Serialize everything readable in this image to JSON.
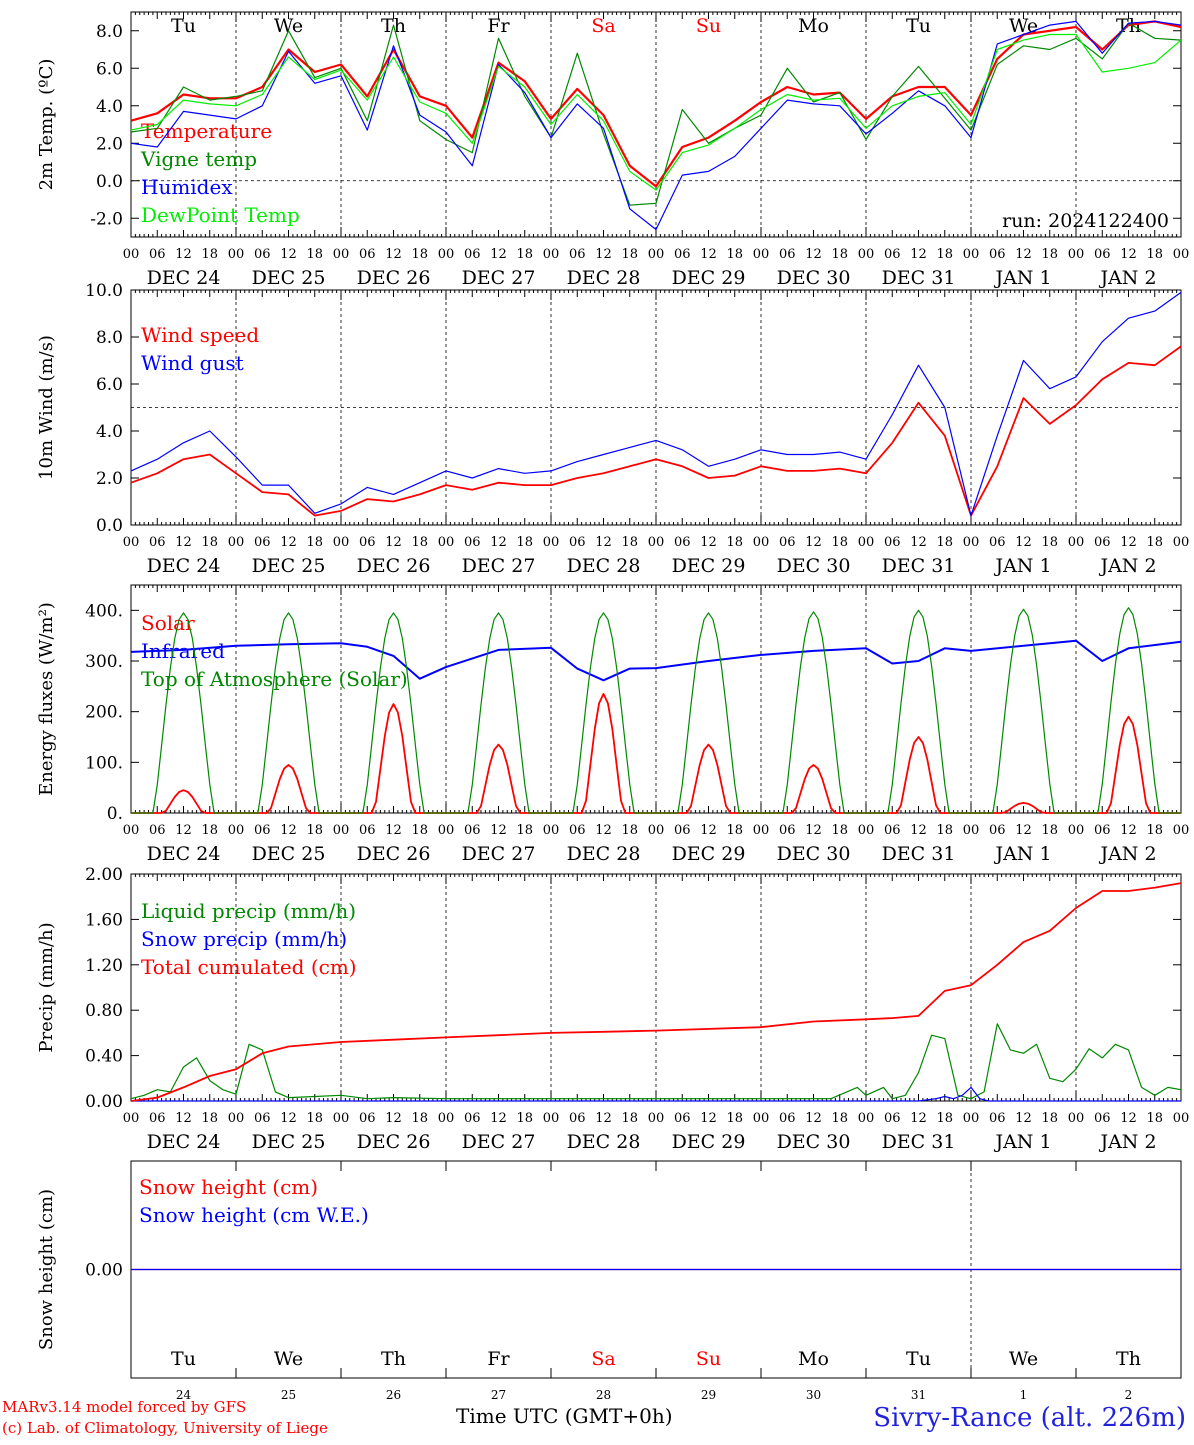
{
  "run_label": "run: 2024122400",
  "footer": {
    "model": "MARv3.14 model forced by GFS",
    "credit": "(c) Lab. of Climatology, University of Liege",
    "time_label": "Time UTC (GMT+0h)",
    "station": "Sivry-Rance (alt. 226m)"
  },
  "x_axis": {
    "hour_labels": [
      "00",
      "06",
      "12",
      "18"
    ],
    "date_labels": [
      "DEC 24",
      "DEC 25",
      "DEC 26",
      "DEC 27",
      "DEC 28",
      "DEC 29",
      "DEC 30",
      "DEC 31",
      "JAN  1",
      "JAN  2"
    ],
    "weekday_labels": [
      "Tu",
      "We",
      "Th",
      "Fr",
      "Sa",
      "Su",
      "Mo",
      "Tu",
      "We",
      "Th"
    ],
    "weekday_colors": [
      "#000000",
      "#000000",
      "#000000",
      "#000000",
      "#ff0000",
      "#ff0000",
      "#000000",
      "#000000",
      "#000000",
      "#000000"
    ],
    "day_numbers": [
      "24",
      "25",
      "26",
      "27",
      "28",
      "29",
      "30",
      "31",
      "1",
      "2"
    ]
  },
  "chart_data": [
    {
      "type": "line",
      "ylabel": "2m Temp. (ºC)",
      "ylim": [
        -3.0,
        9.0
      ],
      "yticks": [
        "-2.0",
        "0.0",
        "2.0",
        "4.0",
        "6.0",
        "8.0"
      ],
      "ytick_values": [
        -2,
        0,
        2,
        4,
        6,
        8
      ],
      "x_unit": "hours since DEC 24 00 UTC",
      "x": [
        0,
        6,
        12,
        18,
        24,
        30,
        36,
        42,
        48,
        54,
        60,
        66,
        72,
        78,
        84,
        90,
        96,
        102,
        108,
        114,
        120,
        126,
        132,
        138,
        144,
        150,
        156,
        162,
        168,
        174,
        180,
        186,
        192,
        198,
        204,
        210,
        216,
        222,
        228,
        234,
        240
      ],
      "series": [
        {
          "name": "Temperature",
          "color": "#ff0000",
          "width": 2.2,
          "values": [
            3.2,
            3.6,
            4.6,
            4.4,
            4.4,
            5.0,
            7.0,
            5.8,
            6.2,
            4.5,
            7.0,
            4.5,
            4.0,
            2.3,
            6.3,
            5.3,
            3.3,
            4.9,
            3.5,
            0.8,
            -0.3,
            1.8,
            2.3,
            3.2,
            4.2,
            5.0,
            4.6,
            4.7,
            3.3,
            4.5,
            5.0,
            5.0,
            3.5,
            6.5,
            7.8,
            8.0,
            8.2,
            7.0,
            8.3,
            8.5,
            8.2
          ]
        },
        {
          "name": "Vigne temp",
          "color": "#008800",
          "width": 1.2,
          "values": [
            2.6,
            2.8,
            5.0,
            4.3,
            4.5,
            4.8,
            8.0,
            5.5,
            6.0,
            3.2,
            8.3,
            3.2,
            2.2,
            1.5,
            7.6,
            4.5,
            2.3,
            6.8,
            2.5,
            -1.3,
            -1.2,
            3.8,
            2.0,
            2.8,
            3.5,
            6.0,
            4.2,
            4.7,
            2.2,
            4.5,
            6.1,
            4.4,
            2.7,
            6.2,
            7.2,
            7.0,
            7.6,
            6.5,
            8.4,
            7.6,
            7.5
          ]
        },
        {
          "name": "Humidex",
          "color": "#0000ff",
          "width": 1.2,
          "values": [
            2.0,
            1.8,
            3.7,
            3.5,
            3.3,
            4.0,
            6.9,
            5.2,
            5.6,
            2.7,
            7.2,
            3.5,
            2.6,
            0.8,
            6.2,
            4.7,
            2.3,
            4.1,
            2.8,
            -1.5,
            -2.6,
            0.3,
            0.5,
            1.3,
            2.8,
            4.3,
            4.1,
            4.0,
            2.5,
            3.6,
            4.8,
            4.0,
            2.3,
            7.3,
            7.8,
            8.3,
            8.5,
            6.8,
            8.4,
            8.5,
            8.3
          ]
        },
        {
          "name": "DewPoint Temp",
          "color": "#00ee00",
          "width": 1.2,
          "values": [
            2.7,
            3.0,
            4.3,
            4.1,
            4.0,
            4.6,
            6.6,
            5.4,
            5.9,
            4.3,
            6.6,
            4.2,
            3.6,
            2.0,
            6.1,
            5.0,
            3.0,
            4.6,
            3.2,
            0.5,
            -0.5,
            1.5,
            1.9,
            2.8,
            3.8,
            4.6,
            4.3,
            4.4,
            2.8,
            4.0,
            4.5,
            4.7,
            3.0,
            7.0,
            7.5,
            7.8,
            7.8,
            5.8,
            6.0,
            6.3,
            7.5
          ]
        }
      ]
    },
    {
      "type": "line",
      "ylabel": "10m Wind (m/s)",
      "ylim": [
        0.0,
        10.0
      ],
      "yticks": [
        "0.0",
        "2.0",
        "4.0",
        "6.0",
        "8.0",
        "10.0"
      ],
      "ytick_values": [
        0,
        2,
        4,
        6,
        8,
        10
      ],
      "dashed_reference": 5.0,
      "x_unit": "hours since DEC 24 00 UTC",
      "x": [
        0,
        6,
        12,
        18,
        24,
        30,
        36,
        42,
        48,
        54,
        60,
        66,
        72,
        78,
        84,
        90,
        96,
        102,
        108,
        114,
        120,
        126,
        132,
        138,
        144,
        150,
        156,
        162,
        168,
        174,
        180,
        186,
        192,
        198,
        204,
        210,
        216,
        222,
        228,
        234,
        240
      ],
      "series": [
        {
          "name": "Wind speed",
          "color": "#ff0000",
          "width": 1.8,
          "values": [
            1.8,
            2.2,
            2.8,
            3.0,
            2.2,
            1.4,
            1.3,
            0.4,
            0.6,
            1.1,
            1.0,
            1.3,
            1.7,
            1.5,
            1.8,
            1.7,
            1.7,
            2.0,
            2.2,
            2.5,
            2.8,
            2.5,
            2.0,
            2.1,
            2.5,
            2.3,
            2.3,
            2.4,
            2.2,
            3.5,
            5.2,
            3.8,
            0.4,
            2.5,
            5.4,
            4.3,
            5.1,
            6.2,
            6.9,
            6.8,
            7.6
          ]
        },
        {
          "name": "Wind gust",
          "color": "#0000ff",
          "width": 1.2,
          "values": [
            2.3,
            2.8,
            3.5,
            4.0,
            2.9,
            1.7,
            1.7,
            0.5,
            0.9,
            1.6,
            1.3,
            1.8,
            2.3,
            2.0,
            2.4,
            2.2,
            2.3,
            2.7,
            3.0,
            3.3,
            3.6,
            3.2,
            2.5,
            2.8,
            3.2,
            3.0,
            3.0,
            3.1,
            2.8,
            4.7,
            6.8,
            5.0,
            0.4,
            3.8,
            7.0,
            5.8,
            6.3,
            7.8,
            8.8,
            9.1,
            9.9
          ]
        }
      ]
    },
    {
      "type": "line",
      "ylabel": "Energy fluxes (W/m²)",
      "ylim": [
        0,
        450
      ],
      "yticks": [
        "0.",
        "100.",
        "200.",
        "300.",
        "400."
      ],
      "ytick_values": [
        0,
        100,
        200,
        300,
        400
      ],
      "peak_hours": [
        12,
        36,
        60,
        84,
        108,
        132,
        156,
        180,
        204,
        228
      ],
      "series": [
        {
          "name": "Solar",
          "color": "#ff0000",
          "width": 1.8,
          "daily_peaks": [
            45,
            95,
            215,
            135,
            235,
            135,
            95,
            150,
            20,
            190
          ]
        },
        {
          "name": "Infrared",
          "color": "#0000ff",
          "width": 2.0,
          "x": [
            0,
            12,
            24,
            36,
            48,
            54,
            60,
            66,
            72,
            84,
            96,
            102,
            108,
            114,
            120,
            132,
            144,
            156,
            168,
            174,
            180,
            186,
            192,
            204,
            216,
            222,
            228,
            240
          ],
          "values": [
            318,
            322,
            330,
            333,
            335,
            328,
            310,
            265,
            288,
            322,
            326,
            285,
            262,
            285,
            286,
            300,
            312,
            320,
            325,
            295,
            300,
            325,
            320,
            330,
            340,
            300,
            325,
            338
          ]
        },
        {
          "name": "Top of Atmosphere (Solar)",
          "color": "#008800",
          "width": 1.2,
          "daily_peaks": [
            395,
            395,
            395,
            395,
            395,
            395,
            397,
            400,
            402,
            405
          ]
        }
      ]
    },
    {
      "type": "line",
      "ylabel": "Precip (mm/h)",
      "ylim": [
        0.0,
        2.0
      ],
      "yticks": [
        "0.00",
        "0.40",
        "0.80",
        "1.20",
        "1.60",
        "2.00"
      ],
      "ytick_values": [
        0,
        0.4,
        0.8,
        1.2,
        1.6,
        2.0
      ],
      "x_unit": "hours since DEC 24 00 UTC",
      "series": [
        {
          "name": "Liquid precip (mm/h)",
          "color": "#008800",
          "width": 1.2,
          "x": [
            0,
            3,
            6,
            9,
            12,
            15,
            18,
            21,
            24,
            27,
            30,
            33,
            36,
            42,
            48,
            54,
            60,
            72,
            96,
            120,
            144,
            160,
            166,
            168,
            172,
            174,
            177,
            180,
            183,
            186,
            189,
            192,
            195,
            198,
            201,
            204,
            207,
            210,
            213,
            216,
            219,
            222,
            225,
            228,
            231,
            234,
            237,
            240
          ],
          "values": [
            0.02,
            0.05,
            0.1,
            0.08,
            0.3,
            0.38,
            0.18,
            0.1,
            0.06,
            0.5,
            0.45,
            0.08,
            0.03,
            0.04,
            0.05,
            0.02,
            0.03,
            0.02,
            0.02,
            0.02,
            0.02,
            0.02,
            0.12,
            0.05,
            0.12,
            0.02,
            0.05,
            0.25,
            0.58,
            0.55,
            0.05,
            0.02,
            0.08,
            0.68,
            0.45,
            0.42,
            0.5,
            0.2,
            0.17,
            0.28,
            0.46,
            0.38,
            0.5,
            0.45,
            0.12,
            0.05,
            0.12,
            0.1
          ]
        },
        {
          "name": "Snow precip (mm/h)",
          "color": "#0000ff",
          "width": 1.2,
          "x": [
            0,
            180,
            184,
            186,
            188,
            190,
            192,
            194,
            196,
            198,
            240
          ],
          "values": [
            0,
            0,
            0.02,
            0.04,
            0.02,
            0.05,
            0.12,
            0.02,
            0,
            0,
            0
          ]
        },
        {
          "name": "Total cumulated (cm)",
          "color": "#ff0000",
          "width": 1.8,
          "x": [
            0,
            6,
            12,
            18,
            24,
            30,
            36,
            48,
            60,
            72,
            84,
            96,
            108,
            120,
            144,
            156,
            168,
            174,
            180,
            186,
            192,
            198,
            204,
            210,
            216,
            222,
            228,
            234,
            240
          ],
          "values": [
            0.0,
            0.03,
            0.12,
            0.22,
            0.28,
            0.42,
            0.48,
            0.52,
            0.54,
            0.56,
            0.58,
            0.6,
            0.61,
            0.62,
            0.65,
            0.7,
            0.72,
            0.73,
            0.75,
            0.97,
            1.02,
            1.2,
            1.4,
            1.5,
            1.7,
            1.85,
            1.85,
            1.88,
            1.92
          ]
        }
      ]
    },
    {
      "type": "line",
      "ylabel": "Snow height (cm)",
      "ylim": [
        -1.0,
        1.0
      ],
      "yticks": [
        "0.00"
      ],
      "ytick_values": [
        0
      ],
      "series": [
        {
          "name": "Snow height (cm)",
          "color": "#ff0000",
          "width": 1.2,
          "x": [
            0,
            240
          ],
          "values": [
            0,
            0
          ]
        },
        {
          "name": "Snow height (cm W.E.)",
          "color": "#0000ff",
          "width": 1.2,
          "x": [
            0,
            240
          ],
          "values": [
            0,
            0
          ]
        }
      ]
    }
  ]
}
